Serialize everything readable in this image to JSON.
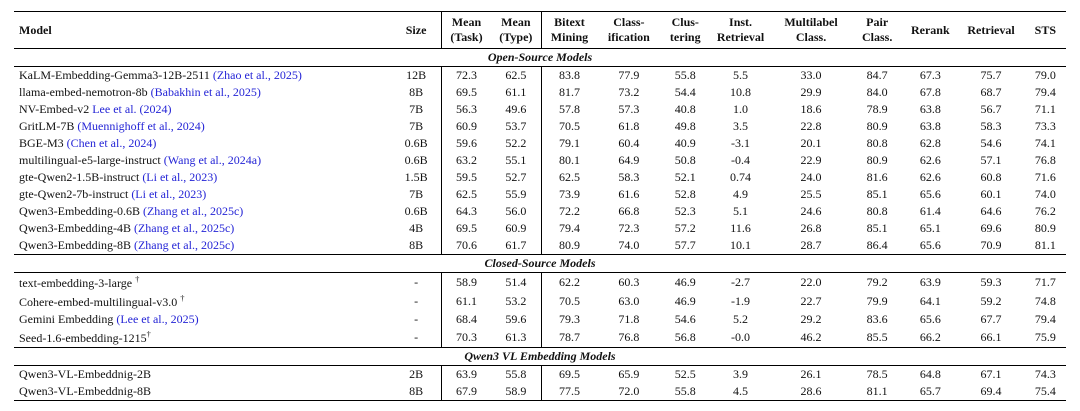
{
  "table": {
    "colors": {
      "citation_blue": "#2424d6",
      "text": "#111111",
      "rule": "#000000"
    },
    "columns": [
      {
        "line1": "Model",
        "line2": ""
      },
      {
        "line1": "Size",
        "line2": ""
      },
      {
        "line1": "Mean",
        "line2": "(Task)"
      },
      {
        "line1": "Mean",
        "line2": "(Type)"
      },
      {
        "line1": "Bitext",
        "line2": "Mining"
      },
      {
        "line1": "Class-",
        "line2": "ification"
      },
      {
        "line1": "Clus-",
        "line2": "tering"
      },
      {
        "line1": "Inst.",
        "line2": "Retrieval"
      },
      {
        "line1": "Multilabel",
        "line2": "Class."
      },
      {
        "line1": "Pair",
        "line2": "Class."
      },
      {
        "line1": "Rerank",
        "line2": ""
      },
      {
        "line1": "Retrieval",
        "line2": ""
      },
      {
        "line1": "STS",
        "line2": ""
      }
    ],
    "sections": [
      {
        "title": "Open-Source Models",
        "rows": [
          {
            "model": "KaLM-Embedding-Gemma3-12B-2511",
            "cite": "(Zhao et al., 2025)",
            "sup": "",
            "size": "12B",
            "values": [
              "72.3",
              "62.5",
              "83.8",
              "77.9",
              "55.8",
              "5.5",
              "33.0",
              "84.7",
              "67.3",
              "75.7",
              "79.0"
            ]
          },
          {
            "model": "llama-embed-nemotron-8b",
            "cite": "(Babakhin et al., 2025)",
            "sup": "",
            "size": "8B",
            "values": [
              "69.5",
              "61.1",
              "81.7",
              "73.2",
              "54.4",
              "10.8",
              "29.9",
              "84.0",
              "67.8",
              "68.7",
              "79.4"
            ]
          },
          {
            "model": "NV-Embed-v2",
            "cite": "Lee et al. (2024)",
            "sup": "",
            "size": "7B",
            "values": [
              "56.3",
              "49.6",
              "57.8",
              "57.3",
              "40.8",
              "1.0",
              "18.6",
              "78.9",
              "63.8",
              "56.7",
              "71.1"
            ]
          },
          {
            "model": "GritLM-7B",
            "cite": "(Muennighoff et al., 2024)",
            "sup": "",
            "size": "7B",
            "values": [
              "60.9",
              "53.7",
              "70.5",
              "61.8",
              "49.8",
              "3.5",
              "22.8",
              "80.9",
              "63.8",
              "58.3",
              "73.3"
            ]
          },
          {
            "model": "BGE-M3",
            "cite": "(Chen et al., 2024)",
            "sup": "",
            "size": "0.6B",
            "values": [
              "59.6",
              "52.2",
              "79.1",
              "60.4",
              "40.9",
              "-3.1",
              "20.1",
              "80.8",
              "62.8",
              "54.6",
              "74.1"
            ]
          },
          {
            "model": "multilingual-e5-large-instruct",
            "cite": "(Wang et al., 2024a)",
            "sup": "",
            "size": "0.6B",
            "values": [
              "63.2",
              "55.1",
              "80.1",
              "64.9",
              "50.8",
              "-0.4",
              "22.9",
              "80.9",
              "62.6",
              "57.1",
              "76.8"
            ]
          },
          {
            "model": "gte-Qwen2-1.5B-instruct",
            "cite": "(Li et al., 2023)",
            "sup": "",
            "size": "1.5B",
            "values": [
              "59.5",
              "52.7",
              "62.5",
              "58.3",
              "52.1",
              "0.74",
              "24.0",
              "81.6",
              "62.6",
              "60.8",
              "71.6"
            ]
          },
          {
            "model": "gte-Qwen2-7b-instruct",
            "cite": "(Li et al., 2023)",
            "sup": "",
            "size": "7B",
            "values": [
              "62.5",
              "55.9",
              "73.9",
              "61.6",
              "52.8",
              "4.9",
              "25.5",
              "85.1",
              "65.6",
              "60.1",
              "74.0"
            ]
          },
          {
            "model": "Qwen3-Embedding-0.6B",
            "cite": "(Zhang et al., 2025c)",
            "sup": "",
            "size": "0.6B",
            "values": [
              "64.3",
              "56.0",
              "72.2",
              "66.8",
              "52.3",
              "5.1",
              "24.6",
              "80.8",
              "61.4",
              "64.6",
              "76.2"
            ]
          },
          {
            "model": "Qwen3-Embedding-4B",
            "cite": "(Zhang et al., 2025c)",
            "sup": "",
            "size": "4B",
            "values": [
              "69.5",
              "60.9",
              "79.4",
              "72.3",
              "57.2",
              "11.6",
              "26.8",
              "85.1",
              "65.1",
              "69.6",
              "80.9"
            ]
          },
          {
            "model": "Qwen3-Embedding-8B",
            "cite": "(Zhang et al., 2025c)",
            "sup": "",
            "size": "8B",
            "values": [
              "70.6",
              "61.7",
              "80.9",
              "74.0",
              "57.7",
              "10.1",
              "28.7",
              "86.4",
              "65.6",
              "70.9",
              "81.1"
            ]
          }
        ]
      },
      {
        "title": "Closed-Source Models",
        "rows": [
          {
            "model": "text-embedding-3-large ",
            "cite": "",
            "sup": "†",
            "size": "-",
            "values": [
              "58.9",
              "51.4",
              "62.2",
              "60.3",
              "46.9",
              "-2.7",
              "22.0",
              "79.2",
              "63.9",
              "59.3",
              "71.7"
            ]
          },
          {
            "model": "Cohere-embed-multilingual-v3.0 ",
            "cite": "",
            "sup": "†",
            "size": "-",
            "values": [
              "61.1",
              "53.2",
              "70.5",
              "63.0",
              "46.9",
              "-1.9",
              "22.7",
              "79.9",
              "64.1",
              "59.2",
              "74.8"
            ]
          },
          {
            "model": "Gemini Embedding",
            "cite": "(Lee et al., 2025)",
            "sup": "",
            "size": "-",
            "values": [
              "68.4",
              "59.6",
              "79.3",
              "71.8",
              "54.6",
              "5.2",
              "29.2",
              "83.6",
              "65.6",
              "67.7",
              "79.4"
            ]
          },
          {
            "model": "Seed-1.6-embedding-1215",
            "cite": "",
            "sup": "†",
            "size": "-",
            "values": [
              "70.3",
              "61.3",
              "78.7",
              "76.8",
              "56.8",
              "-0.0",
              "46.2",
              "85.5",
              "66.2",
              "66.1",
              "75.9"
            ]
          }
        ]
      },
      {
        "title": "Qwen3 VL Embedding Models",
        "rows": [
          {
            "model": "Qwen3-VL-Embeddnig-2B",
            "cite": "",
            "sup": "",
            "size": "2B",
            "values": [
              "63.9",
              "55.8",
              "69.5",
              "65.9",
              "52.5",
              "3.9",
              "26.1",
              "78.5",
              "64.8",
              "67.1",
              "74.3"
            ]
          },
          {
            "model": "Qwen3-VL-Embeddnig-8B",
            "cite": "",
            "sup": "",
            "size": "8B",
            "values": [
              "67.9",
              "58.9",
              "77.5",
              "72.0",
              "55.8",
              "4.5",
              "28.6",
              "81.1",
              "65.7",
              "69.4",
              "75.4"
            ]
          }
        ]
      }
    ]
  }
}
